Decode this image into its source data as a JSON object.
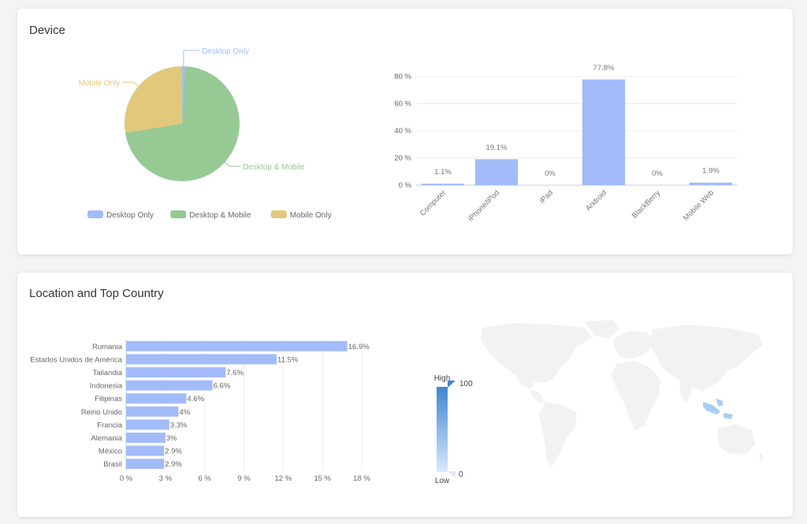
{
  "device_card": {
    "title": "Device"
  },
  "location_card": {
    "title": "Location and Top Country"
  },
  "colors": {
    "desktop_only": "#a3bcf9",
    "desktop_mobile": "#96c994",
    "mobile_only": "#e2c87a",
    "bar": "#a3bcf9",
    "map_land": "#f2f2f2",
    "map_highlight": "#a8cef3",
    "legend_high": "#3f86d0",
    "legend_low": "#d8e9fb"
  },
  "chart_data": [
    {
      "type": "pie",
      "slices": [
        {
          "name": "Desktop Only",
          "value": 0.8
        },
        {
          "name": "Desktop & Mobile",
          "value": 71.7
        },
        {
          "name": "Mobile Only",
          "value": 27.5
        }
      ],
      "legend": [
        "Desktop Only",
        "Desktop & Mobile",
        "Mobile Only"
      ],
      "legend_position": "bottom"
    },
    {
      "type": "bar",
      "categories": [
        "Computer",
        "iPhone/iPod",
        "iPad",
        "Android",
        "BlackBerry",
        "Mobile Web"
      ],
      "values": [
        1.1,
        19.1,
        0,
        77.8,
        0,
        1.9
      ],
      "data_labels": [
        "1.1%",
        "19.1%",
        "0%",
        "77.8%",
        "0%",
        "1.9%"
      ],
      "yticks": [
        "0 %",
        "20 %",
        "40 %",
        "60 %",
        "80 %"
      ],
      "ylim": [
        0,
        80
      ],
      "grid": true
    },
    {
      "type": "bar",
      "orientation": "horizontal",
      "categories": [
        "Rumania",
        "Estados Unidos de América",
        "Tailandia",
        "Indonesia",
        "Filipinas",
        "Reino Unido",
        "Francia",
        "Alemania",
        "México",
        "Brasil"
      ],
      "values": [
        16.9,
        11.5,
        7.6,
        6.6,
        4.6,
        4,
        3.3,
        3,
        2.9,
        2.9
      ],
      "data_labels": [
        "16.9%",
        "11.5%",
        "7.6%",
        "6.6%",
        "4.6%",
        "4%",
        "3.3%",
        "3%",
        "2.9%",
        "2.9%"
      ],
      "xticks": [
        "0 %",
        "3 %",
        "6 %",
        "9 %",
        "12 %",
        "15 %",
        "18 %"
      ],
      "xlim": [
        0,
        18
      ],
      "grid": true
    }
  ],
  "map_legend": {
    "high_label": "High",
    "low_label": "Low",
    "max": "100",
    "min": "0"
  }
}
